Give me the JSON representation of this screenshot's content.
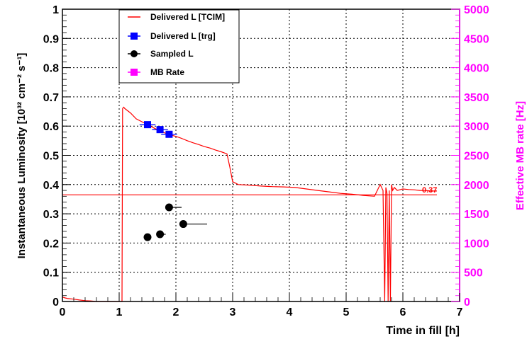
{
  "chart_data": {
    "type": "line",
    "xlabel": "Time in fill [h]",
    "ylabel_left": "Instantaneous Luminosity [10³² cm⁻² s⁻¹]",
    "ylabel_right": "Effective MB rate [Hz]",
    "xlim": [
      0,
      7
    ],
    "ylim_left": [
      0,
      1
    ],
    "ylim_right": [
      0,
      5000
    ],
    "x_ticks": [
      "0",
      "1",
      "2",
      "3",
      "4",
      "5",
      "6",
      "7"
    ],
    "y_ticks_left": [
      "0",
      "0.1",
      "0.2",
      "0.3",
      "0.4",
      "0.5",
      "0.6",
      "0.7",
      "0.8",
      "0.9",
      "1"
    ],
    "y_ticks_right": [
      "0",
      "500",
      "1000",
      "1500",
      "2000",
      "2500",
      "3000",
      "3500",
      "4000",
      "4500",
      "5000"
    ],
    "grid": true,
    "legend_position": "top-left",
    "colors": {
      "delivered_tcim": "#ff0000",
      "delivered_trg": "#0000ff",
      "sampled": "#000000",
      "mb_rate": "#ff00ff"
    },
    "annotation": "0.37",
    "series": [
      {
        "name": "Delivered L [TCIM]",
        "style": "line",
        "x": [
          0,
          0.05,
          0.1,
          0.2,
          0.3,
          0.4,
          0.5,
          0.6,
          1.05,
          1.06,
          1.08,
          1.1,
          1.2,
          1.3,
          1.4,
          1.5,
          1.6,
          1.7,
          1.8,
          1.9,
          2.0,
          2.1,
          2.2,
          2.3,
          2.4,
          2.5,
          2.6,
          2.7,
          2.8,
          2.9,
          2.95,
          3.0,
          3.1,
          3.3,
          3.5,
          3.7,
          3.9,
          4.1,
          4.3,
          4.5,
          4.7,
          4.9,
          5.1,
          5.3,
          5.5,
          5.6,
          5.65,
          5.68,
          5.7,
          5.72,
          5.74,
          5.76,
          5.78,
          5.8,
          5.82,
          5.85,
          5.9,
          6.0,
          6.1,
          6.2,
          6.3,
          6.4,
          6.5,
          6.6
        ],
        "y": [
          0.015,
          0.012,
          0.01,
          0.008,
          0.005,
          0.003,
          0.002,
          0.0,
          0.0,
          0.66,
          0.665,
          0.66,
          0.645,
          0.625,
          0.615,
          0.605,
          0.595,
          0.585,
          0.577,
          0.57,
          0.565,
          0.558,
          0.55,
          0.543,
          0.537,
          0.53,
          0.525,
          0.518,
          0.512,
          0.505,
          0.46,
          0.41,
          0.4,
          0.398,
          0.395,
          0.393,
          0.392,
          0.39,
          0.385,
          0.38,
          0.375,
          0.37,
          0.367,
          0.363,
          0.36,
          0.4,
          0.38,
          0.0,
          0.39,
          0.37,
          0.0,
          0.38,
          0.0,
          0.4,
          0.38,
          0.39,
          0.38,
          0.385,
          0.383,
          0.382,
          0.38,
          0.38,
          0.378,
          0.378
        ]
      },
      {
        "name": "",
        "style": "hline",
        "x": [
          0,
          6.6
        ],
        "y": [
          0.365,
          0.365
        ]
      },
      {
        "name": "Delivered L [trg]",
        "style": "squares",
        "x": [
          1.5,
          1.72,
          1.88
        ],
        "y": [
          0.605,
          0.588,
          0.572
        ],
        "xerr": [
          0.14,
          0.14,
          0.14
        ]
      },
      {
        "name": "Sampled L",
        "style": "dots",
        "x": [
          1.5,
          1.72,
          1.88,
          2.13
        ],
        "y": [
          0.22,
          0.23,
          0.322,
          0.265
        ],
        "xerr_plus": [
          0.0,
          0.1,
          0.22,
          0.42
        ]
      },
      {
        "name": "MB Rate",
        "style": "squares",
        "x": [],
        "y": []
      }
    ]
  }
}
